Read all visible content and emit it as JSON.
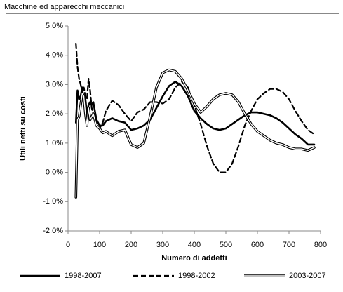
{
  "chart_data": {
    "type": "line",
    "title": "Macchine ed apparecchi meccanici",
    "xlabel": "Numero di addetti",
    "ylabel": "Utili netti su costi",
    "x": [
      25,
      30,
      35,
      40,
      45,
      50,
      55,
      60,
      65,
      70,
      75,
      80,
      90,
      100,
      110,
      120,
      140,
      160,
      180,
      200,
      220,
      240,
      260,
      280,
      300,
      320,
      340,
      360,
      380,
      400,
      420,
      440,
      460,
      480,
      500,
      520,
      540,
      560,
      580,
      600,
      620,
      640,
      660,
      680,
      700,
      720,
      740,
      760,
      780
    ],
    "series": [
      {
        "name": "1998-2007",
        "color": "#000000",
        "style": "solid",
        "values": [
          1.7,
          2.8,
          2.5,
          2.6,
          2.9,
          2.3,
          2.5,
          2.0,
          2.3,
          2.4,
          2.3,
          2.4,
          1.8,
          1.6,
          1.6,
          1.75,
          1.85,
          1.75,
          1.7,
          1.45,
          1.5,
          1.6,
          1.8,
          2.2,
          2.6,
          2.95,
          3.1,
          2.95,
          2.6,
          2.1,
          1.85,
          1.65,
          1.5,
          1.45,
          1.5,
          1.65,
          1.8,
          1.95,
          2.05,
          2.05,
          2.0,
          1.95,
          1.85,
          1.7,
          1.5,
          1.3,
          1.15,
          0.95,
          0.95
        ]
      },
      {
        "name": "1998-2002",
        "color": "#000000",
        "style": "dashed",
        "values": [
          4.4,
          3.6,
          3.2,
          3.0,
          2.7,
          2.9,
          2.6,
          2.5,
          3.2,
          2.8,
          2.2,
          2.0,
          1.6,
          1.5,
          1.7,
          2.1,
          2.45,
          2.3,
          2.0,
          1.75,
          2.05,
          2.15,
          2.4,
          2.4,
          2.35,
          2.5,
          2.9,
          3.1,
          2.9,
          2.3,
          1.65,
          0.9,
          0.3,
          0.0,
          0.0,
          0.3,
          0.9,
          1.6,
          2.1,
          2.5,
          2.7,
          2.85,
          2.85,
          2.75,
          2.5,
          2.1,
          1.75,
          1.45,
          1.3
        ]
      },
      {
        "name": "2003-2007",
        "color": "#000000",
        "style": "double",
        "values": [
          -0.85,
          1.8,
          1.9,
          2.3,
          2.7,
          2.6,
          2.0,
          1.6,
          2.2,
          1.8,
          1.9,
          2.0,
          1.6,
          1.5,
          1.35,
          1.4,
          1.25,
          1.4,
          1.45,
          0.95,
          0.85,
          1.0,
          1.9,
          2.9,
          3.4,
          3.5,
          3.45,
          3.2,
          2.8,
          2.35,
          2.05,
          2.25,
          2.5,
          2.65,
          2.7,
          2.65,
          2.4,
          2.0,
          1.65,
          1.4,
          1.25,
          1.1,
          1.0,
          0.95,
          0.85,
          0.8,
          0.8,
          0.75,
          0.85
        ]
      }
    ],
    "xlim": [
      0,
      800
    ],
    "xticks": [
      0,
      100,
      200,
      300,
      400,
      500,
      600,
      700,
      800
    ],
    "ylim": [
      -2,
      5
    ],
    "yticks": [
      {
        "value": -2,
        "label": "-2.0%"
      },
      {
        "value": -1,
        "label": "-1.0%"
      },
      {
        "value": 0,
        "label": "0.0%"
      },
      {
        "value": 1,
        "label": "1.0%"
      },
      {
        "value": 2,
        "label": "2.0%"
      },
      {
        "value": 3,
        "label": "3.0%"
      },
      {
        "value": 4,
        "label": "4.0%"
      },
      {
        "value": 5,
        "label": "5.0%"
      }
    ],
    "grid": false,
    "legend": "bottom"
  }
}
